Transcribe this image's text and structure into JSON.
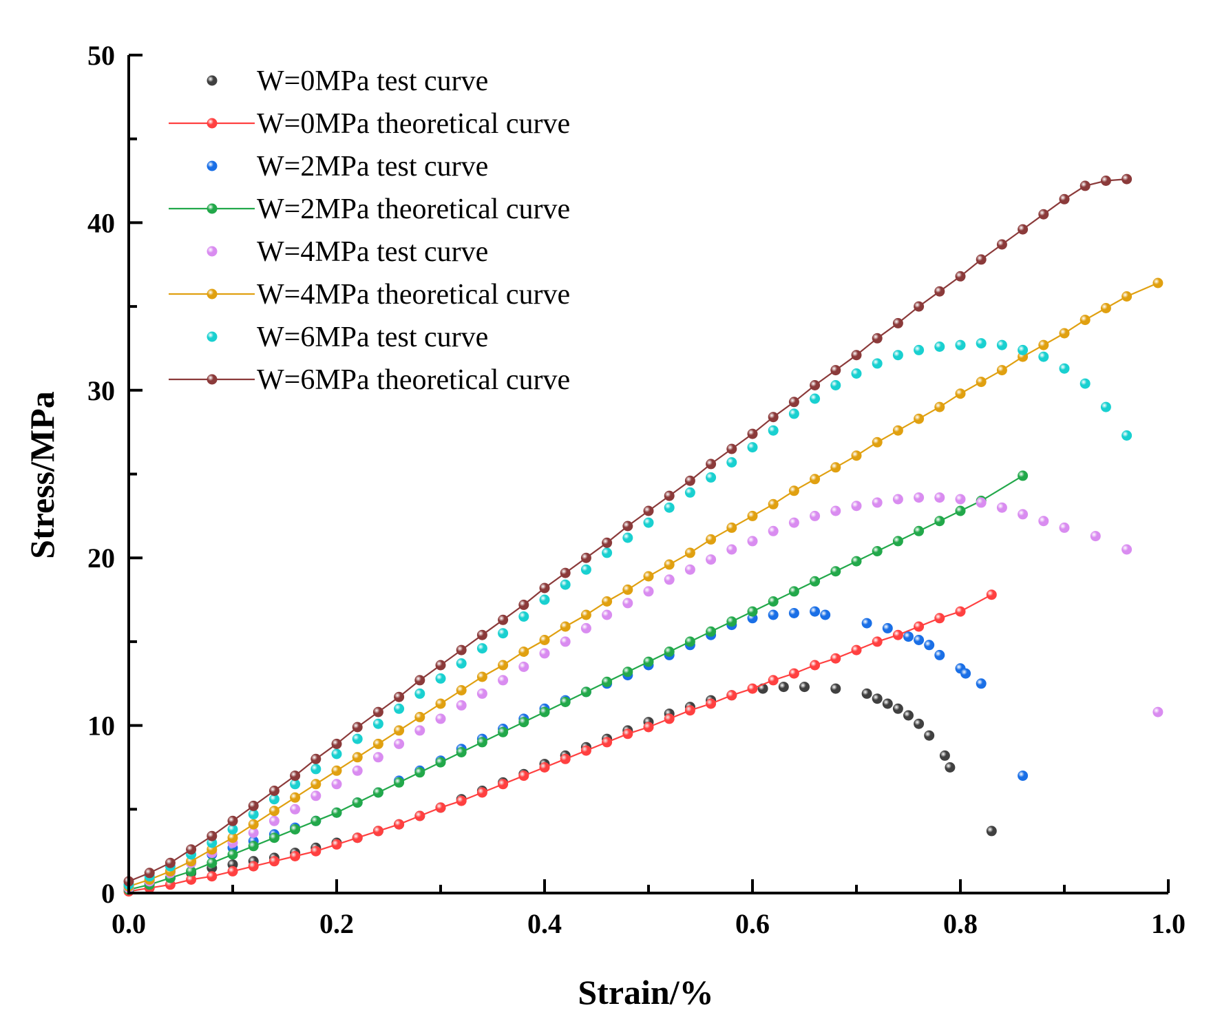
{
  "chart_data": {
    "type": "scatter",
    "title": "",
    "xlabel": "Strain/%",
    "ylabel": "Stress/MPa",
    "xlim": [
      0.0,
      1.0
    ],
    "ylim": [
      0,
      50
    ],
    "x_ticks": [
      "0.0",
      "0.2",
      "0.4",
      "0.6",
      "0.8",
      "1.0"
    ],
    "y_ticks": [
      "0",
      "10",
      "20",
      "30",
      "40",
      "50"
    ],
    "legend_position": "top-left",
    "grid": false,
    "series": [
      {
        "name": "W=0MPa test curve",
        "kind": "test",
        "color": "#404040",
        "x": [
          0.0,
          0.02,
          0.04,
          0.06,
          0.08,
          0.1,
          0.12,
          0.14,
          0.16,
          0.18,
          0.2,
          0.22,
          0.24,
          0.26,
          0.28,
          0.3,
          0.32,
          0.34,
          0.36,
          0.38,
          0.4,
          0.42,
          0.44,
          0.46,
          0.48,
          0.5,
          0.52,
          0.54,
          0.56,
          0.58,
          0.61,
          0.63,
          0.65,
          0.68,
          0.71,
          0.72,
          0.73,
          0.74,
          0.75,
          0.76,
          0.77,
          0.785,
          0.79,
          0.83
        ],
        "y": [
          0.3,
          0.6,
          0.9,
          1.2,
          1.5,
          1.7,
          1.9,
          2.1,
          2.4,
          2.7,
          3.0,
          3.3,
          3.7,
          4.1,
          4.6,
          5.1,
          5.6,
          6.1,
          6.6,
          7.1,
          7.7,
          8.2,
          8.7,
          9.2,
          9.7,
          10.2,
          10.7,
          11.1,
          11.5,
          11.8,
          12.2,
          12.3,
          12.3,
          12.2,
          11.9,
          11.6,
          11.3,
          11.0,
          10.6,
          10.1,
          9.4,
          8.2,
          7.5,
          3.7
        ]
      },
      {
        "name": "W=0MPa theoretical curve",
        "kind": "theory",
        "color": "#ff4040",
        "x": [
          0.0,
          0.02,
          0.04,
          0.06,
          0.08,
          0.1,
          0.12,
          0.14,
          0.16,
          0.18,
          0.2,
          0.22,
          0.24,
          0.26,
          0.28,
          0.3,
          0.32,
          0.34,
          0.36,
          0.38,
          0.4,
          0.42,
          0.44,
          0.46,
          0.48,
          0.5,
          0.52,
          0.54,
          0.56,
          0.58,
          0.6,
          0.62,
          0.64,
          0.66,
          0.68,
          0.7,
          0.72,
          0.74,
          0.76,
          0.78,
          0.8,
          0.83
        ],
        "y": [
          0.1,
          0.3,
          0.5,
          0.8,
          1.0,
          1.3,
          1.6,
          1.9,
          2.2,
          2.5,
          2.9,
          3.3,
          3.7,
          4.1,
          4.6,
          5.1,
          5.5,
          6.0,
          6.5,
          7.0,
          7.5,
          8.0,
          8.5,
          9.0,
          9.5,
          9.9,
          10.4,
          10.9,
          11.3,
          11.8,
          12.2,
          12.7,
          13.1,
          13.6,
          14.0,
          14.5,
          15.0,
          15.4,
          15.9,
          16.4,
          16.8,
          17.8
        ]
      },
      {
        "name": "W=2MPa test curve",
        "kind": "test",
        "color": "#1a6fe6",
        "x": [
          0.0,
          0.02,
          0.04,
          0.06,
          0.08,
          0.1,
          0.12,
          0.14,
          0.16,
          0.18,
          0.2,
          0.22,
          0.24,
          0.26,
          0.28,
          0.3,
          0.32,
          0.34,
          0.36,
          0.38,
          0.4,
          0.42,
          0.44,
          0.46,
          0.48,
          0.5,
          0.52,
          0.54,
          0.56,
          0.58,
          0.6,
          0.62,
          0.64,
          0.66,
          0.67,
          0.71,
          0.73,
          0.75,
          0.76,
          0.77,
          0.78,
          0.8,
          0.805,
          0.82,
          0.86
        ],
        "y": [
          0.3,
          0.8,
          1.3,
          1.8,
          2.3,
          2.7,
          3.1,
          3.5,
          3.9,
          4.3,
          4.8,
          5.4,
          6.0,
          6.7,
          7.3,
          7.9,
          8.6,
          9.2,
          9.8,
          10.4,
          11.0,
          11.5,
          12.0,
          12.5,
          13.0,
          13.6,
          14.2,
          14.8,
          15.4,
          16.0,
          16.4,
          16.6,
          16.7,
          16.8,
          16.6,
          16.1,
          15.8,
          15.3,
          15.1,
          14.8,
          14.2,
          13.4,
          13.1,
          12.5,
          7.0
        ]
      },
      {
        "name": "W=2MPa theoretical curve",
        "kind": "theory",
        "color": "#22a84a",
        "x": [
          0.0,
          0.02,
          0.04,
          0.06,
          0.08,
          0.1,
          0.12,
          0.14,
          0.16,
          0.18,
          0.2,
          0.22,
          0.24,
          0.26,
          0.28,
          0.3,
          0.32,
          0.34,
          0.36,
          0.38,
          0.4,
          0.42,
          0.44,
          0.46,
          0.48,
          0.5,
          0.52,
          0.54,
          0.56,
          0.58,
          0.6,
          0.62,
          0.64,
          0.66,
          0.68,
          0.7,
          0.72,
          0.74,
          0.76,
          0.78,
          0.8,
          0.82,
          0.86
        ],
        "y": [
          0.2,
          0.5,
          0.9,
          1.3,
          1.8,
          2.3,
          2.8,
          3.3,
          3.8,
          4.3,
          4.8,
          5.4,
          6.0,
          6.6,
          7.2,
          7.8,
          8.4,
          9.0,
          9.6,
          10.2,
          10.8,
          11.4,
          12.0,
          12.6,
          13.2,
          13.8,
          14.4,
          15.0,
          15.6,
          16.2,
          16.8,
          17.4,
          18.0,
          18.6,
          19.2,
          19.8,
          20.4,
          21.0,
          21.6,
          22.2,
          22.8,
          23.4,
          24.9
        ]
      },
      {
        "name": "W=4MPa test curve",
        "kind": "test",
        "color": "#d98cf0",
        "x": [
          0.0,
          0.02,
          0.04,
          0.06,
          0.08,
          0.1,
          0.12,
          0.14,
          0.16,
          0.18,
          0.2,
          0.22,
          0.24,
          0.26,
          0.28,
          0.3,
          0.32,
          0.34,
          0.36,
          0.38,
          0.4,
          0.42,
          0.44,
          0.46,
          0.48,
          0.5,
          0.52,
          0.54,
          0.56,
          0.58,
          0.6,
          0.62,
          0.64,
          0.66,
          0.68,
          0.7,
          0.72,
          0.74,
          0.76,
          0.78,
          0.8,
          0.82,
          0.84,
          0.86,
          0.88,
          0.9,
          0.93,
          0.96,
          0.99
        ],
        "y": [
          0.3,
          0.7,
          1.2,
          1.8,
          2.4,
          3.0,
          3.6,
          4.3,
          5.0,
          5.8,
          6.5,
          7.3,
          8.1,
          8.9,
          9.7,
          10.4,
          11.2,
          11.9,
          12.7,
          13.5,
          14.3,
          15.0,
          15.8,
          16.6,
          17.3,
          18.0,
          18.7,
          19.3,
          19.9,
          20.5,
          21.0,
          21.6,
          22.1,
          22.5,
          22.8,
          23.1,
          23.3,
          23.5,
          23.6,
          23.6,
          23.5,
          23.3,
          23.0,
          22.6,
          22.2,
          21.8,
          21.3,
          20.5,
          10.8
        ]
      },
      {
        "name": "W=4MPa theoretical curve",
        "kind": "theory",
        "color": "#e0a010",
        "x": [
          0.0,
          0.02,
          0.04,
          0.06,
          0.08,
          0.1,
          0.12,
          0.14,
          0.16,
          0.18,
          0.2,
          0.22,
          0.24,
          0.26,
          0.28,
          0.3,
          0.32,
          0.34,
          0.36,
          0.38,
          0.4,
          0.42,
          0.44,
          0.46,
          0.48,
          0.5,
          0.52,
          0.54,
          0.56,
          0.58,
          0.6,
          0.62,
          0.64,
          0.66,
          0.68,
          0.7,
          0.72,
          0.74,
          0.76,
          0.78,
          0.8,
          0.82,
          0.84,
          0.86,
          0.88,
          0.9,
          0.92,
          0.94,
          0.96,
          0.99
        ],
        "y": [
          0.4,
          0.8,
          1.3,
          1.9,
          2.6,
          3.3,
          4.1,
          4.9,
          5.7,
          6.5,
          7.3,
          8.1,
          8.9,
          9.7,
          10.5,
          11.3,
          12.1,
          12.9,
          13.6,
          14.4,
          15.1,
          15.9,
          16.6,
          17.4,
          18.1,
          18.9,
          19.6,
          20.3,
          21.1,
          21.8,
          22.5,
          23.2,
          24.0,
          24.7,
          25.4,
          26.1,
          26.9,
          27.6,
          28.3,
          29.0,
          29.8,
          30.5,
          31.2,
          32.0,
          32.7,
          33.4,
          34.2,
          34.9,
          35.6,
          36.4
        ]
      },
      {
        "name": "W=6MPa test curve",
        "kind": "test",
        "color": "#19d0d0",
        "x": [
          0.0,
          0.02,
          0.04,
          0.06,
          0.08,
          0.1,
          0.12,
          0.14,
          0.16,
          0.18,
          0.2,
          0.22,
          0.24,
          0.26,
          0.28,
          0.3,
          0.32,
          0.34,
          0.36,
          0.38,
          0.4,
          0.42,
          0.44,
          0.46,
          0.48,
          0.5,
          0.52,
          0.54,
          0.56,
          0.58,
          0.6,
          0.62,
          0.64,
          0.66,
          0.68,
          0.7,
          0.72,
          0.74,
          0.76,
          0.78,
          0.8,
          0.82,
          0.84,
          0.86,
          0.88,
          0.9,
          0.92,
          0.94,
          0.96
        ],
        "y": [
          0.5,
          1.0,
          1.6,
          2.3,
          3.0,
          3.8,
          4.7,
          5.6,
          6.5,
          7.4,
          8.3,
          9.2,
          10.1,
          11.0,
          11.9,
          12.8,
          13.7,
          14.6,
          15.5,
          16.5,
          17.5,
          18.4,
          19.3,
          20.3,
          21.2,
          22.1,
          23.0,
          23.9,
          24.8,
          25.7,
          26.6,
          27.6,
          28.6,
          29.5,
          30.3,
          31.0,
          31.6,
          32.1,
          32.4,
          32.6,
          32.7,
          32.8,
          32.7,
          32.4,
          32.0,
          31.3,
          30.4,
          29.0,
          27.3
        ]
      },
      {
        "name": "W=6MPa theoretical curve",
        "kind": "theory",
        "color": "#8b3a3a",
        "x": [
          0.0,
          0.02,
          0.04,
          0.06,
          0.08,
          0.1,
          0.12,
          0.14,
          0.16,
          0.18,
          0.2,
          0.22,
          0.24,
          0.26,
          0.28,
          0.3,
          0.32,
          0.34,
          0.36,
          0.38,
          0.4,
          0.42,
          0.44,
          0.46,
          0.48,
          0.5,
          0.52,
          0.54,
          0.56,
          0.58,
          0.6,
          0.62,
          0.64,
          0.66,
          0.68,
          0.7,
          0.72,
          0.74,
          0.76,
          0.78,
          0.8,
          0.82,
          0.84,
          0.86,
          0.88,
          0.9,
          0.92,
          0.94,
          0.96
        ],
        "y": [
          0.7,
          1.2,
          1.8,
          2.6,
          3.4,
          4.3,
          5.2,
          6.1,
          7.0,
          8.0,
          8.9,
          9.9,
          10.8,
          11.7,
          12.7,
          13.6,
          14.5,
          15.4,
          16.3,
          17.2,
          18.2,
          19.1,
          20.0,
          20.9,
          21.9,
          22.8,
          23.7,
          24.6,
          25.6,
          26.5,
          27.4,
          28.4,
          29.3,
          30.3,
          31.2,
          32.1,
          33.1,
          34.0,
          35.0,
          35.9,
          36.8,
          37.8,
          38.7,
          39.6,
          40.5,
          41.4,
          42.2,
          42.5,
          42.6
        ]
      }
    ]
  }
}
